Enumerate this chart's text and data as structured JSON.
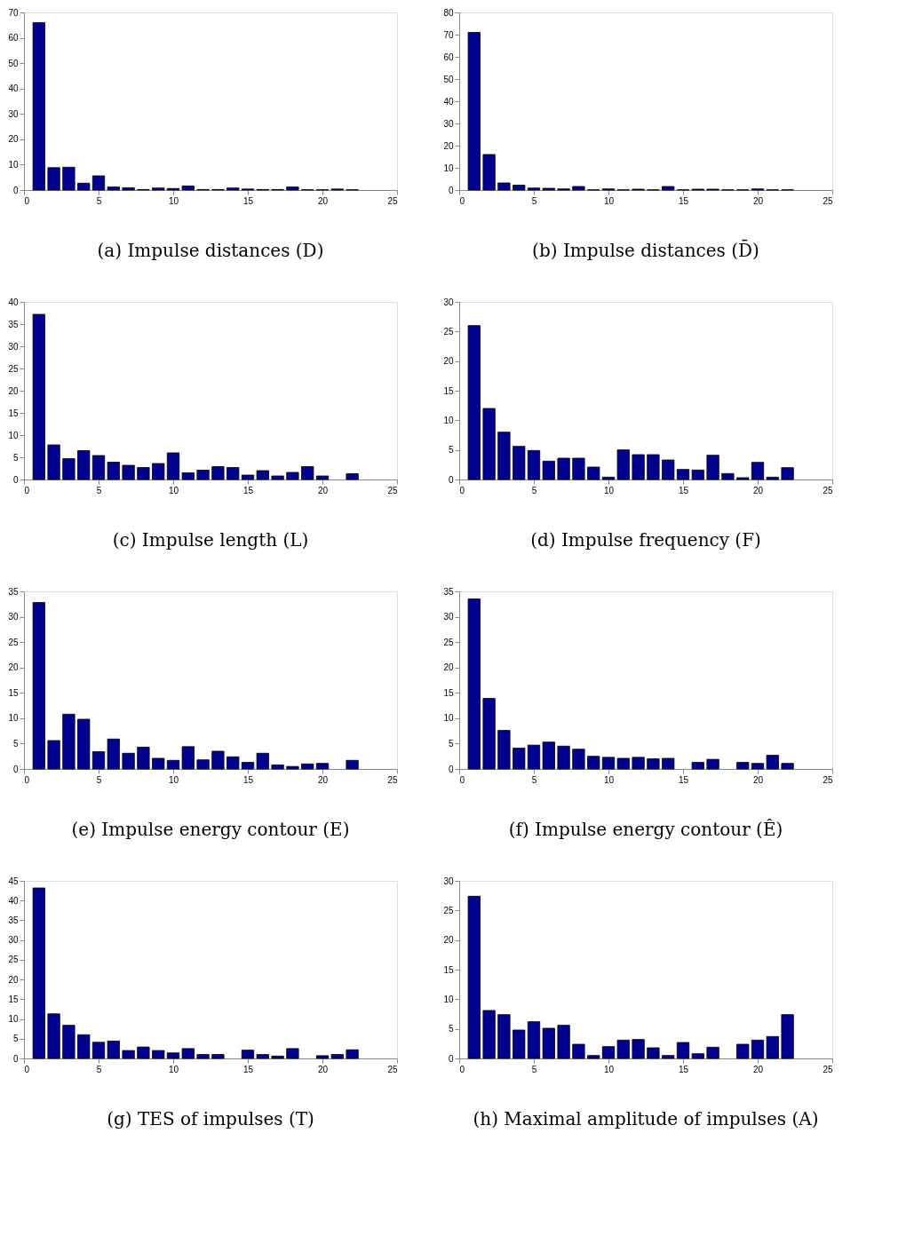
{
  "chart_data": [
    {
      "type": "bar",
      "title": "(a) Impulse distances (D)",
      "x": [
        1,
        2,
        3,
        4,
        5,
        6,
        7,
        8,
        9,
        10,
        11,
        12,
        13,
        14,
        15,
        16,
        17,
        18,
        19,
        20,
        21,
        22
      ],
      "values": [
        66,
        8.8,
        9,
        2.7,
        5.6,
        1.2,
        0.9,
        0.2,
        0.8,
        0.6,
        1.6,
        0.2,
        0.2,
        0.8,
        0.4,
        0.2,
        0.2,
        1.2,
        0.1,
        0.1,
        0.4,
        0.1
      ],
      "color": "#00008f",
      "xlim": [
        0,
        25
      ],
      "xticks": [
        0,
        5,
        10,
        15,
        20,
        25
      ],
      "ylim": [
        0,
        70
      ],
      "yticks": [
        0,
        10,
        20,
        30,
        40,
        50,
        60,
        70
      ]
    },
    {
      "type": "bar",
      "title": "(b) Impulse distances (D̄)",
      "x": [
        1,
        2,
        3,
        4,
        5,
        6,
        7,
        8,
        9,
        10,
        11,
        12,
        13,
        14,
        15,
        16,
        17,
        18,
        19,
        20,
        21,
        22
      ],
      "values": [
        71,
        16,
        3.2,
        2.2,
        0.9,
        0.8,
        0.5,
        1.6,
        0.1,
        0.5,
        0.1,
        0.4,
        0.1,
        1.6,
        0.1,
        0.4,
        0.4,
        0.1,
        0.1,
        0.5,
        0.1,
        0.1
      ],
      "color": "#00008f",
      "xlim": [
        0,
        25
      ],
      "xticks": [
        0,
        5,
        10,
        15,
        20,
        25
      ],
      "ylim": [
        0,
        80
      ],
      "yticks": [
        0,
        10,
        20,
        30,
        40,
        50,
        60,
        70,
        80
      ]
    },
    {
      "type": "bar",
      "title": "(c) Impulse length (L)",
      "x": [
        1,
        2,
        3,
        4,
        5,
        6,
        7,
        8,
        9,
        10,
        11,
        12,
        13,
        14,
        15,
        16,
        17,
        18,
        19,
        20,
        21,
        22
      ],
      "values": [
        37.2,
        7.8,
        4.7,
        6.5,
        5.4,
        3.9,
        3.2,
        2.7,
        3.6,
        6.0,
        1.5,
        2.1,
        2.9,
        2.7,
        1.0,
        2.0,
        0.8,
        1.6,
        2.9,
        0.8,
        0,
        1.3
      ],
      "color": "#00008f",
      "xlim": [
        0,
        25
      ],
      "xticks": [
        0,
        5,
        10,
        15,
        20,
        25
      ],
      "ylim": [
        0,
        40
      ],
      "yticks": [
        0,
        5,
        10,
        15,
        20,
        25,
        30,
        35,
        40
      ]
    },
    {
      "type": "bar",
      "title": "(d) Impulse frequency (F)",
      "x": [
        1,
        2,
        3,
        4,
        5,
        6,
        7,
        8,
        9,
        10,
        11,
        12,
        13,
        14,
        15,
        16,
        17,
        18,
        19,
        20,
        21,
        22
      ],
      "values": [
        26,
        12,
        8,
        5.6,
        4.9,
        3.1,
        3.6,
        3.6,
        2.1,
        0.4,
        5.0,
        4.2,
        4.2,
        3.3,
        1.7,
        1.6,
        4.1,
        1.0,
        0.3,
        2.9,
        0.4,
        2.0
      ],
      "color": "#00008f",
      "xlim": [
        0,
        25
      ],
      "xticks": [
        0,
        5,
        10,
        15,
        20,
        25
      ],
      "ylim": [
        0,
        30
      ],
      "yticks": [
        0,
        5,
        10,
        15,
        20,
        25,
        30
      ]
    },
    {
      "type": "bar",
      "title": "(e) Impulse energy contour (E)",
      "x": [
        1,
        2,
        3,
        4,
        5,
        6,
        7,
        8,
        9,
        10,
        11,
        12,
        13,
        14,
        15,
        16,
        17,
        18,
        19,
        20,
        21,
        22
      ],
      "values": [
        32.8,
        5.6,
        10.8,
        9.8,
        3.4,
        5.9,
        3.1,
        4.3,
        2.1,
        1.7,
        4.4,
        1.8,
        3.5,
        2.4,
        1.3,
        3.1,
        0.8,
        0.5,
        1.0,
        1.1,
        0,
        1.7
      ],
      "color": "#00008f",
      "xlim": [
        0,
        25
      ],
      "xticks": [
        0,
        5,
        10,
        15,
        20,
        25
      ],
      "ylim": [
        0,
        35
      ],
      "yticks": [
        0,
        5,
        10,
        15,
        20,
        25,
        30,
        35
      ]
    },
    {
      "type": "bar",
      "title": "(f) Impulse energy contour (Ê)",
      "x": [
        1,
        2,
        3,
        4,
        5,
        6,
        7,
        8,
        9,
        10,
        11,
        12,
        13,
        14,
        15,
        16,
        17,
        18,
        19,
        20,
        21,
        22
      ],
      "values": [
        33.5,
        13.9,
        7.6,
        4.1,
        4.7,
        5.3,
        4.5,
        3.9,
        2.5,
        2.3,
        2.1,
        2.3,
        2.0,
        2.1,
        0,
        1.3,
        1.9,
        0,
        1.3,
        1.1,
        2.7,
        1.1
      ],
      "color": "#00008f",
      "xlim": [
        0,
        25
      ],
      "xticks": [
        0,
        5,
        10,
        15,
        20,
        25
      ],
      "ylim": [
        0,
        35
      ],
      "yticks": [
        0,
        5,
        10,
        15,
        20,
        25,
        30,
        35
      ]
    },
    {
      "type": "bar",
      "title": "(g) TES of impulses (T)",
      "x": [
        1,
        2,
        3,
        4,
        5,
        6,
        7,
        8,
        9,
        10,
        11,
        12,
        13,
        14,
        15,
        16,
        17,
        18,
        19,
        20,
        21,
        22
      ],
      "values": [
        43.2,
        11.3,
        8.4,
        6.0,
        4.1,
        4.4,
        2.0,
        2.9,
        2.0,
        1.4,
        2.5,
        1.0,
        1.0,
        0,
        2.1,
        1.0,
        0.6,
        2.5,
        0,
        0.7,
        1.0,
        2.2
      ],
      "color": "#00008f",
      "xlim": [
        0,
        25
      ],
      "xticks": [
        0,
        5,
        10,
        15,
        20,
        25
      ],
      "ylim": [
        0,
        45
      ],
      "yticks": [
        0,
        5,
        10,
        15,
        20,
        25,
        30,
        35,
        40,
        45
      ]
    },
    {
      "type": "bar",
      "title": "(h) Maximal amplitude of impulses (A)",
      "x": [
        1,
        2,
        3,
        4,
        5,
        6,
        7,
        8,
        9,
        10,
        11,
        12,
        13,
        14,
        15,
        16,
        17,
        18,
        19,
        20,
        21,
        22
      ],
      "values": [
        27.4,
        8.1,
        7.4,
        4.8,
        6.2,
        5.1,
        5.6,
        2.4,
        0.5,
        2.0,
        3.1,
        3.2,
        1.8,
        0.5,
        2.7,
        0.8,
        1.9,
        0,
        2.4,
        3.1,
        3.7,
        7.4
      ],
      "color": "#00008f",
      "xlim": [
        0,
        25
      ],
      "xticks": [
        0,
        5,
        10,
        15,
        20,
        25
      ],
      "ylim": [
        0,
        30
      ],
      "yticks": [
        0,
        5,
        10,
        15,
        20,
        25,
        30
      ]
    }
  ]
}
